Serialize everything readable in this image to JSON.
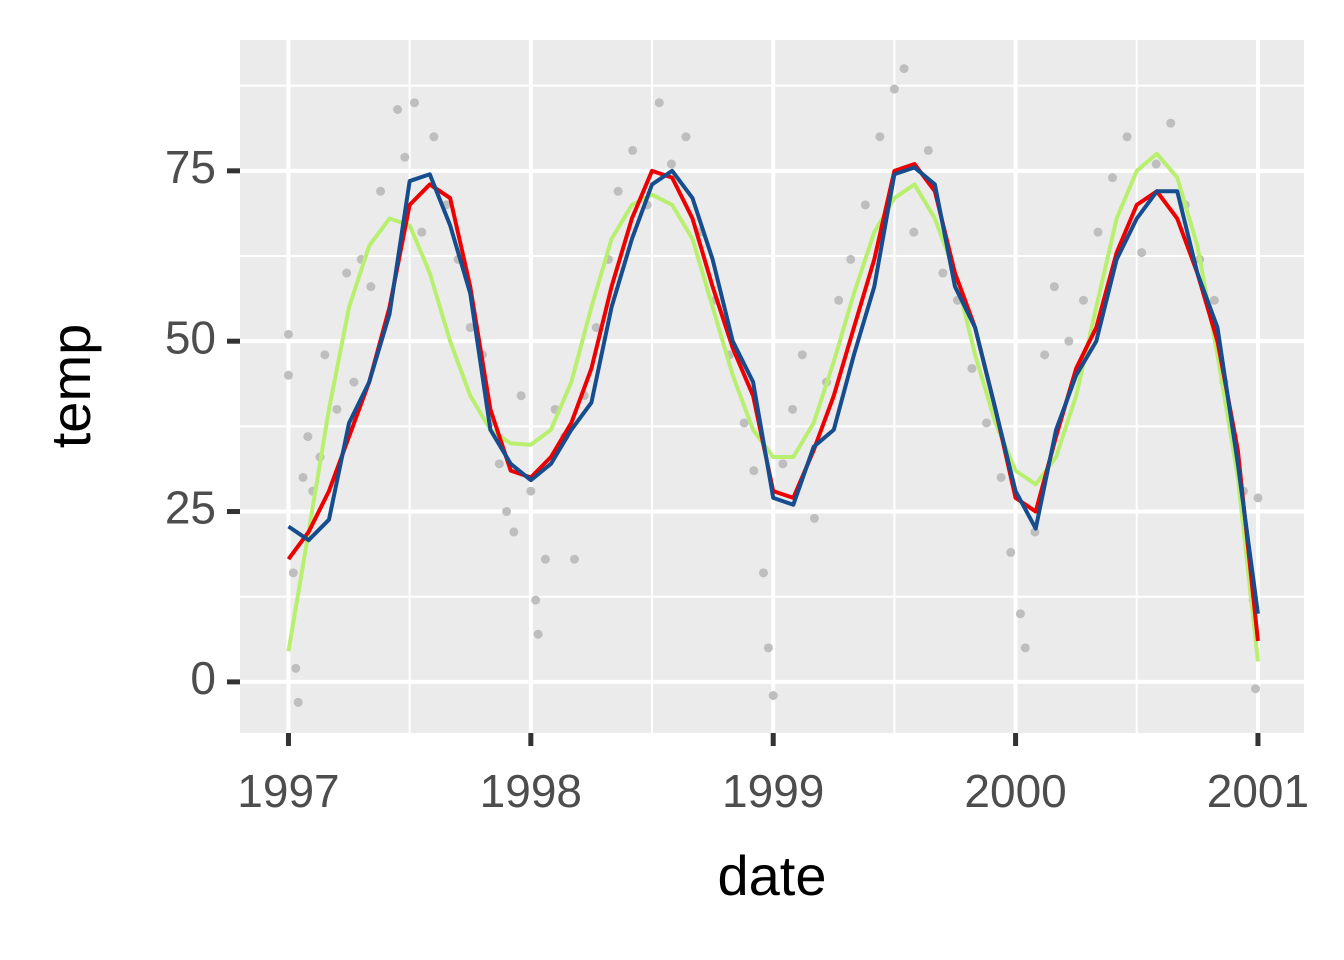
{
  "chart_data": {
    "type": "line",
    "x_label": "date",
    "y_label": "temp",
    "xlim": [
      1996.8,
      2001.19
    ],
    "ylim": [
      -7.5,
      94.2
    ],
    "xticks": [
      1997,
      1998,
      1999,
      2000,
      2001
    ],
    "yticks": [
      0,
      25,
      50,
      75
    ],
    "xminor": [
      1997.5,
      1998.5,
      1999.5,
      2000.5
    ],
    "yminor": [
      12.5,
      37.5,
      62.5,
      87.5
    ],
    "grid": true,
    "points": {
      "color": "#bebebe",
      "x": [
        1997.0,
        1997.0,
        1997.02,
        1997.03,
        1997.04,
        1997.06,
        1997.08,
        1997.1,
        1997.13,
        1997.15,
        1997.2,
        1997.24,
        1997.27,
        1997.3,
        1997.34,
        1997.38,
        1997.45,
        1997.48,
        1997.52,
        1997.55,
        1997.6,
        1997.65,
        1997.7,
        1997.75,
        1997.8,
        1997.83,
        1997.87,
        1997.9,
        1997.93,
        1997.96,
        1998.0,
        1998.02,
        1998.03,
        1998.06,
        1998.1,
        1998.14,
        1998.18,
        1998.22,
        1998.27,
        1998.32,
        1998.36,
        1998.42,
        1998.48,
        1998.53,
        1998.58,
        1998.64,
        1998.7,
        1998.76,
        1998.82,
        1998.88,
        1998.92,
        1998.96,
        1998.98,
        1999.0,
        1999.04,
        1999.08,
        1999.12,
        1999.17,
        1999.22,
        1999.27,
        1999.32,
        1999.38,
        1999.44,
        1999.5,
        1999.54,
        1999.58,
        1999.64,
        1999.7,
        1999.76,
        1999.82,
        1999.88,
        1999.94,
        1999.98,
        2000.02,
        2000.04,
        2000.08,
        2000.12,
        2000.16,
        2000.22,
        2000.28,
        2000.34,
        2000.4,
        2000.46,
        2000.52,
        2000.58,
        2000.64,
        2000.7,
        2000.76,
        2000.82,
        2000.86,
        2000.9,
        2000.94,
        2000.98,
        2000.99,
        2001.0
      ],
      "values": [
        51,
        45,
        16,
        2,
        -3,
        30,
        36,
        28,
        33,
        48,
        40,
        60,
        44,
        62,
        58,
        72,
        84,
        77,
        85,
        66,
        80,
        70,
        62,
        52,
        48,
        38,
        32,
        25,
        22,
        42,
        28,
        12,
        7,
        18,
        40,
        36,
        18,
        42,
        52,
        62,
        72,
        78,
        70,
        85,
        76,
        80,
        66,
        56,
        48,
        38,
        31,
        16,
        5,
        -2,
        32,
        40,
        48,
        24,
        44,
        56,
        62,
        70,
        80,
        87,
        90,
        66,
        78,
        60,
        56,
        46,
        38,
        30,
        19,
        10,
        5,
        22,
        48,
        58,
        50,
        56,
        66,
        74,
        80,
        63,
        76,
        82,
        70,
        62,
        56,
        44,
        36,
        28,
        12,
        -1,
        27
      ]
    },
    "x": [
      1997.0,
      1997.083,
      1997.167,
      1997.25,
      1997.333,
      1997.417,
      1997.5,
      1997.583,
      1997.667,
      1997.75,
      1997.833,
      1997.917,
      1998.0,
      1998.083,
      1998.167,
      1998.25,
      1998.333,
      1998.417,
      1998.5,
      1998.583,
      1998.667,
      1998.75,
      1998.833,
      1998.917,
      1999.0,
      1999.083,
      1999.167,
      1999.25,
      1999.333,
      1999.417,
      1999.5,
      1999.583,
      1999.667,
      1999.75,
      1999.833,
      1999.917,
      2000.0,
      2000.083,
      2000.167,
      2000.25,
      2000.333,
      2000.417,
      2000.5,
      2000.583,
      2000.667,
      2000.75,
      2000.833,
      2000.917,
      2001.0
    ],
    "series": [
      {
        "color": "#b9ef6f",
        "values": [
          4.5,
          22,
          40,
          55,
          64,
          68,
          67,
          60,
          50,
          42,
          37,
          35,
          34.8,
          37,
          44,
          55,
          65,
          70,
          71.5,
          70,
          65,
          55,
          45,
          37,
          33,
          33,
          38,
          47,
          57,
          66,
          71,
          73,
          68,
          60,
          48,
          38,
          31,
          29,
          33,
          42,
          55,
          68,
          75,
          77.5,
          74,
          64,
          48,
          30,
          3
        ]
      },
      {
        "color": "#ee0000",
        "values": [
          18,
          22,
          28,
          36,
          44,
          55,
          70,
          73,
          71,
          58,
          40,
          31,
          30,
          33,
          38,
          46,
          58,
          68,
          75,
          74,
          68,
          58,
          49,
          42,
          28,
          27,
          34,
          42,
          52,
          62,
          75,
          76,
          72,
          60,
          52,
          40,
          27,
          25,
          36,
          46,
          52,
          63,
          70,
          72,
          68,
          60,
          50,
          34,
          6
        ]
      },
      {
        "color": "#154d8f",
        "values": [
          22.8,
          20.8,
          23.8,
          38,
          44,
          54,
          73.5,
          74.5,
          67,
          57,
          37,
          32,
          29.6,
          32,
          37,
          41,
          55,
          65,
          73,
          75,
          71,
          62,
          50,
          44,
          27,
          26,
          34.5,
          37,
          48,
          58,
          74.5,
          75.5,
          73,
          58,
          52,
          40,
          28,
          22.5,
          37,
          45,
          50,
          62,
          68,
          72,
          72,
          60,
          52,
          32,
          10
        ]
      }
    ]
  }
}
